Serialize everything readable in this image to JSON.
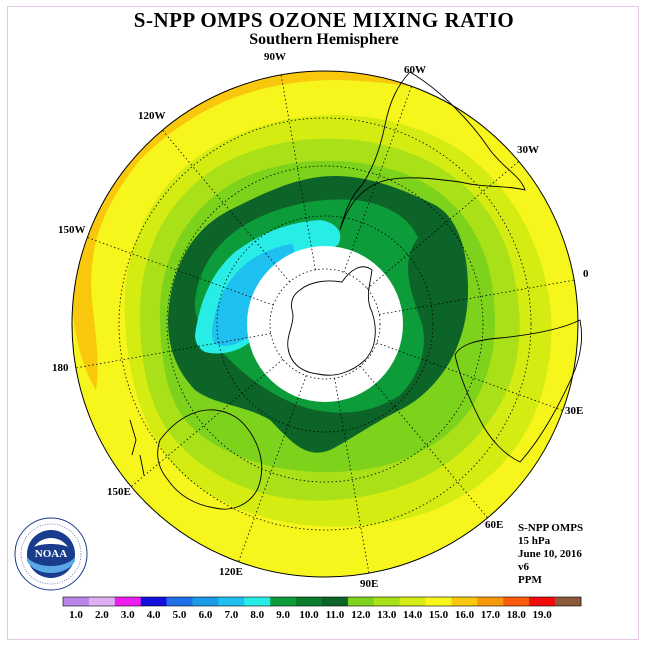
{
  "title": "S-NPP OMPS OZONE MIXING RATIO",
  "subtitle": "Southern Hemisphere",
  "longitude_labels": [
    "90W",
    "60W",
    "30W",
    "0",
    "30E",
    "60E",
    "90E",
    "120E",
    "150E",
    "180",
    "150W",
    "120W"
  ],
  "info": {
    "instrument": "S-NPP OMPS",
    "level": "15 hPa",
    "date": "June 10, 2016",
    "version": "v6",
    "units": "PPM"
  },
  "logo": {
    "text": "NOAA"
  },
  "colorbar": {
    "labels": [
      "1.0",
      "2.0",
      "3.0",
      "4.0",
      "5.0",
      "6.0",
      "7.0",
      "8.0",
      "9.0",
      "10.0",
      "11.0",
      "12.0",
      "13.0",
      "14.0",
      "15.0",
      "16.0",
      "17.0",
      "18.0",
      "19.0"
    ],
    "colors": [
      "#b786e8",
      "#dcb0f2",
      "#ee1cee",
      "#1410dc",
      "#1f6fe8",
      "#1b9ae8",
      "#1ec0f0",
      "#28ece6",
      "#0c9c3a",
      "#0a7a2c",
      "#0d6428",
      "#7dd21c",
      "#a9e018",
      "#d4ec12",
      "#f6f61c",
      "#f9c80c",
      "#f89808",
      "#f85c0a",
      "#f00a0a",
      "#8a5a3a"
    ]
  }
}
